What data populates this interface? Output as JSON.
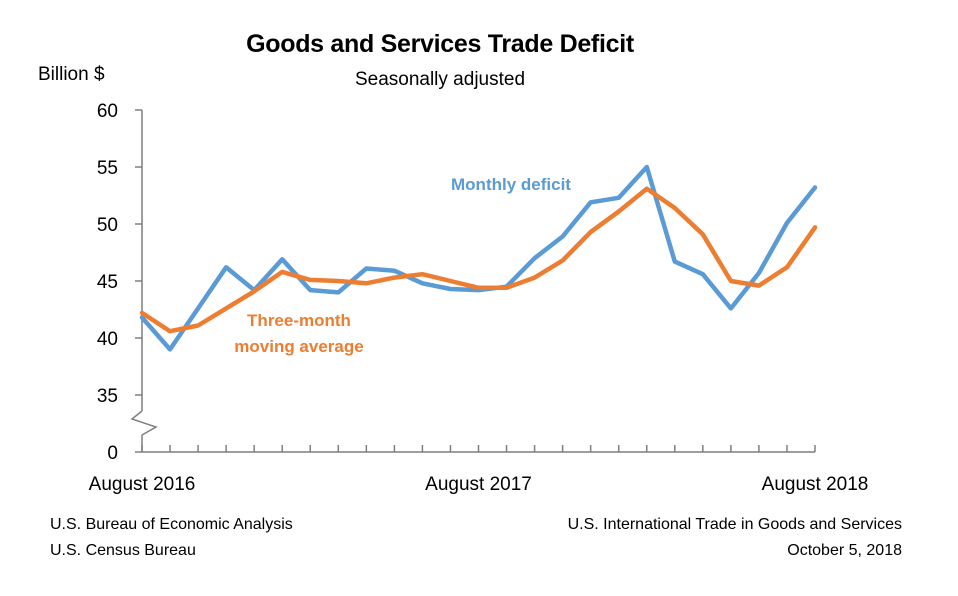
{
  "header": {
    "title": "Goods and Services Trade Deficit",
    "subtitle": "Seasonally adjusted",
    "unit_label": "Billion $"
  },
  "footer": {
    "left_line1": "U.S. Bureau of Economic Analysis",
    "left_line2": "U.S. Census Bureau",
    "right_line1": "U.S. International Trade in Goods and Services",
    "right_line2": "October 5, 2018"
  },
  "colors": {
    "monthly": "#5b9bd5",
    "average": "#ed7d31",
    "axis": "#7f7f7f"
  },
  "chart_data": {
    "type": "line",
    "title": "Goods and Services Trade Deficit",
    "subtitle": "Seasonally adjusted",
    "ylabel": "Billion $",
    "xlabel": "",
    "x": [
      "Aug 2016",
      "Sep 2016",
      "Oct 2016",
      "Nov 2016",
      "Dec 2016",
      "Jan 2017",
      "Feb 2017",
      "Mar 2017",
      "Apr 2017",
      "May 2017",
      "Jun 2017",
      "Jul 2017",
      "Aug 2017",
      "Sep 2017",
      "Oct 2017",
      "Nov 2017",
      "Dec 2017",
      "Jan 2018",
      "Feb 2018",
      "Mar 2018",
      "Apr 2018",
      "May 2018",
      "Jun 2018",
      "Jul 2018",
      "Aug 2018"
    ],
    "x_tick_labels": [
      {
        "index": 0,
        "label": "August 2016"
      },
      {
        "index": 12,
        "label": "August 2017"
      },
      {
        "index": 24,
        "label": "August 2018"
      }
    ],
    "y_ticks": [
      0,
      35,
      40,
      45,
      50,
      55,
      60
    ],
    "ylim": [
      35,
      60
    ],
    "axis_break": "between 0 and 35",
    "series": [
      {
        "name": "Monthly deficit",
        "color": "#5b9bd5",
        "values": [
          41.8,
          39.0,
          42.6,
          46.2,
          44.2,
          46.9,
          44.2,
          44.0,
          46.1,
          45.9,
          44.8,
          44.3,
          44.2,
          44.5,
          47.0,
          48.9,
          51.9,
          52.3,
          55.0,
          46.7,
          45.6,
          42.6,
          45.7,
          50.1,
          53.2
        ]
      },
      {
        "name": "Three-month moving average",
        "color": "#ed7d31",
        "values": [
          42.2,
          40.6,
          41.1,
          42.6,
          44.1,
          45.8,
          45.1,
          45.0,
          44.8,
          45.3,
          45.6,
          45.0,
          44.4,
          44.4,
          45.3,
          46.8,
          49.3,
          51.1,
          53.1,
          51.4,
          49.1,
          45.0,
          44.6,
          46.2,
          49.7
        ]
      }
    ],
    "series_labels": [
      {
        "series": 0,
        "lines": [
          "Monthly deficit"
        ]
      },
      {
        "series": 1,
        "lines": [
          "Three-month",
          "moving average"
        ]
      }
    ],
    "grid": false,
    "legend": "none (direct labels)"
  }
}
